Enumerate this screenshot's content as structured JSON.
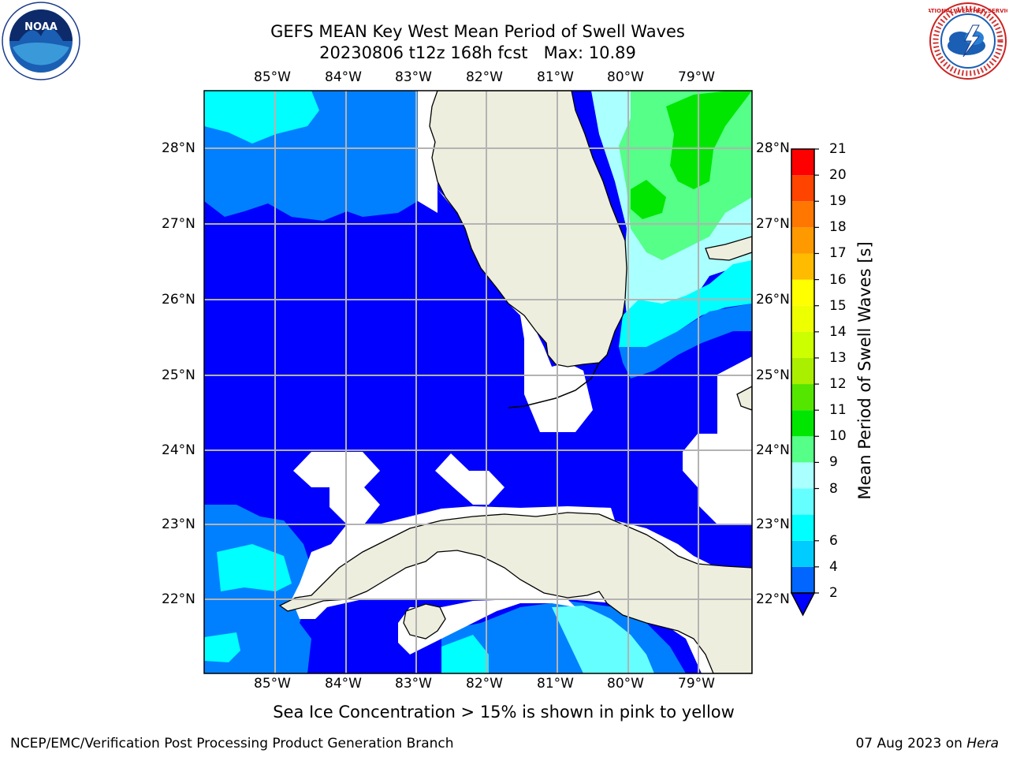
{
  "title": {
    "line1": "GEFS MEAN Key West Mean Period of Swell Waves",
    "line2_date": "20230806 t12z 168h fcst",
    "line2_max": "Max: 10.89"
  },
  "logos": {
    "left": "NOAA",
    "right": "NATIONAL WEATHER SERVICE"
  },
  "map": {
    "longitude_labels": [
      "85°W",
      "84°W",
      "83°W",
      "82°W",
      "81°W",
      "80°W",
      "79°W"
    ],
    "latitude_labels": [
      "28°N",
      "27°N",
      "26°N",
      "25°N",
      "24°N",
      "23°N",
      "22°N"
    ],
    "colors": {
      "dark_blue": "#0000ff",
      "blue": "#0080ff",
      "cyan": "#00ffff",
      "light_cyan": "#a0ffff",
      "light_green": "#4dff80",
      "green": "#00e600",
      "land": "#eeeedf",
      "no_data": "#ffffff",
      "grid": "#b3b3b3"
    }
  },
  "colorbar": {
    "title": "Mean Period of Swell Waves [s]",
    "tick_labels": [
      "21",
      "20",
      "19",
      "18",
      "17",
      "16",
      "15",
      "14",
      "13",
      "12",
      "11",
      "10",
      "9",
      "8",
      "6",
      "4",
      "2"
    ],
    "bands": [
      {
        "from": 2,
        "to": 4,
        "color": "#0066ff"
      },
      {
        "from": 4,
        "to": 6,
        "color": "#00ccff"
      },
      {
        "from": 6,
        "to": 7,
        "color": "#00ffff"
      },
      {
        "from": 7,
        "to": 8,
        "color": "#66ffff"
      },
      {
        "from": 8,
        "to": 9,
        "color": "#aaffff"
      },
      {
        "from": 9,
        "to": 10,
        "color": "#55ff88"
      },
      {
        "from": 10,
        "to": 11,
        "color": "#00e600"
      },
      {
        "from": 11,
        "to": 12,
        "color": "#55e600"
      },
      {
        "from": 12,
        "to": 13,
        "color": "#aaee00"
      },
      {
        "from": 13,
        "to": 14,
        "color": "#ccff00"
      },
      {
        "from": 14,
        "to": 15,
        "color": "#eeff00"
      },
      {
        "from": 15,
        "to": 16,
        "color": "#ffff00"
      },
      {
        "from": 16,
        "to": 17,
        "color": "#ffbb00"
      },
      {
        "from": 17,
        "to": 18,
        "color": "#ff9900"
      },
      {
        "from": 18,
        "to": 19,
        "color": "#ff7700"
      },
      {
        "from": 19,
        "to": 20,
        "color": "#ff4400"
      },
      {
        "from": 20,
        "to": 21,
        "color": "#ff0000"
      }
    ]
  },
  "note": "Sea Ice Concentration > 15% is shown in pink to yellow",
  "footer": {
    "left": "NCEP/EMC/Verification Post Processing Product Generation Branch",
    "right_date": "07 Aug 2023 on ",
    "right_host": "Hera"
  }
}
